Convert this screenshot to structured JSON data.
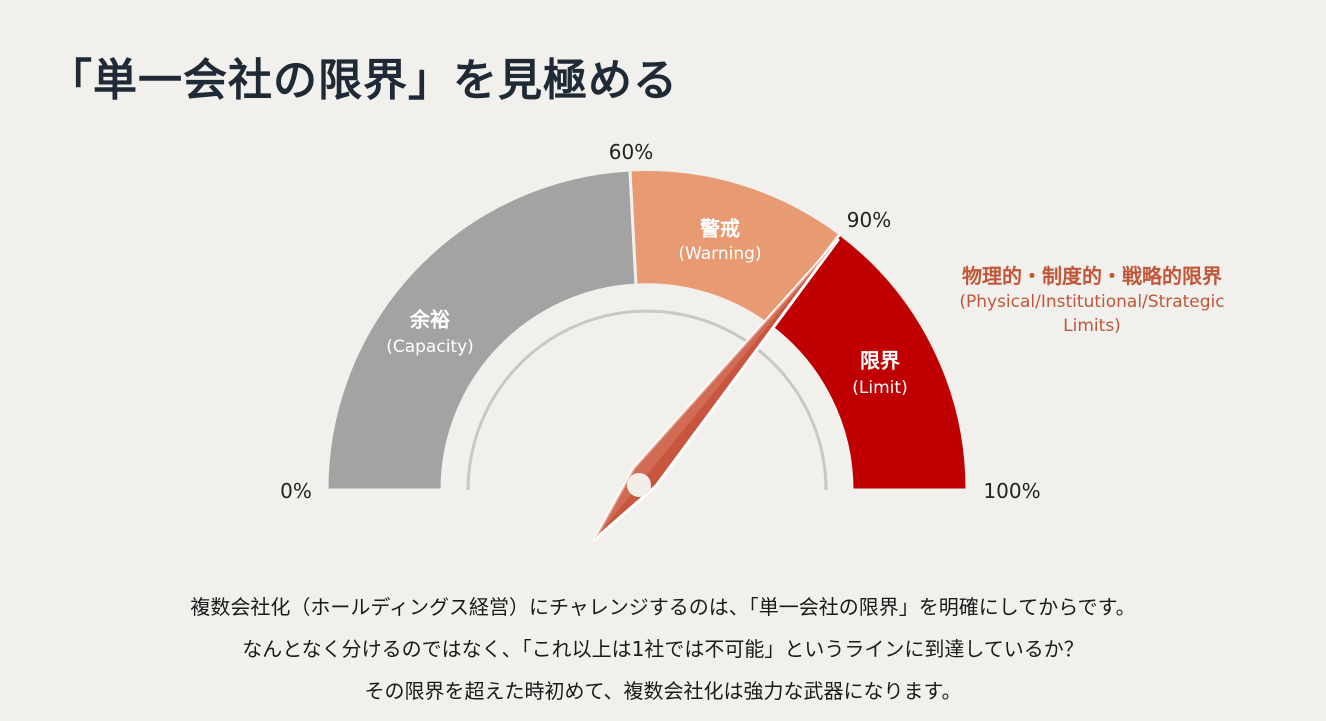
{
  "title": "「単一会社の限界」を見極める",
  "gauge": {
    "ticks": {
      "start": "0%",
      "warning_start": "60%",
      "limit_start": "90%",
      "end": "100%"
    },
    "segments": [
      {
        "jp": "余裕",
        "en": "(Capacity)",
        "color": "#a3a3a3"
      },
      {
        "jp": "警戒",
        "en": "(Warning)",
        "color": "#e89a72"
      },
      {
        "jp": "限界",
        "en": "(Limit)",
        "color": "#c00000"
      }
    ],
    "needle_color": "#c8553d"
  },
  "annotation": {
    "jp": "物理的・制度的・戦略的限界",
    "en_line1": "(Physical/Institutional/Strategic",
    "en_line2": "Limits)"
  },
  "body": [
    "複数会社化（ホールディングス経営）にチャレンジするのは、「単一会社の限界」を明確にしてからです。",
    "なんとなく分けるのではなく、「これ以上は1社では不可能」というラインに到達しているか？",
    "その限界を超えた時初めて、複数会社化は強力な武器になります。"
  ]
}
